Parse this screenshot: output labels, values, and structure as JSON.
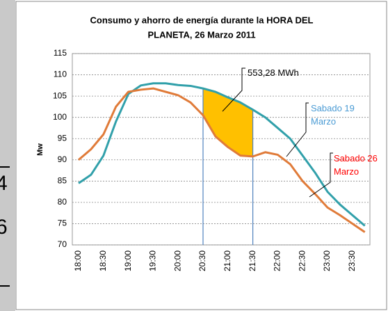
{
  "background_text": [
    "4",
    "6"
  ],
  "chart_data": {
    "type": "line",
    "title": [
      "Consumo y ahorro de  energía durante  la HORA DEL",
      "PLANETA, 26 Marzo 2011"
    ],
    "y_label": "Mw",
    "categories": [
      "18:00",
      null,
      "18:30",
      null,
      "19:00",
      null,
      "19:30",
      null,
      "20:00",
      null,
      "20:30",
      null,
      "21:00",
      null,
      "21:30",
      null,
      "22:00",
      null,
      "22:30",
      null,
      "23:00",
      null,
      "23:30",
      null
    ],
    "series": [
      {
        "name": "Sabado 19 Marzo",
        "color": "#31a0aa",
        "label_color": "#4a9bd4",
        "values": [
          84.5,
          86.5,
          91,
          99,
          105.5,
          107.5,
          108,
          108,
          107.6,
          107.4,
          106.8,
          106,
          104.7,
          103.5,
          101.8,
          100,
          97.5,
          95,
          91,
          87,
          82.5,
          79.5,
          77,
          74.5
        ]
      },
      {
        "name": "Sabado 26 Marzo",
        "color": "#e07b39",
        "label_color": "#ff0000",
        "values": [
          90,
          92.5,
          96,
          102.5,
          106,
          106.5,
          106.8,
          106,
          105.2,
          103.5,
          100.5,
          95.5,
          93,
          91,
          90.8,
          91.8,
          91.2,
          89,
          85,
          82,
          78.8,
          77,
          75,
          73
        ]
      }
    ],
    "highlight_range": [
      "20:30",
      "21:30"
    ],
    "highlight_color": "#ffc000",
    "highlight_line_color": "#4f81bd",
    "highlight_label": "553,28 MWh",
    "ylim": [
      70,
      115
    ],
    "yticks": [
      70,
      75,
      80,
      85,
      90,
      95,
      100,
      105,
      110,
      115
    ],
    "grid": true
  }
}
